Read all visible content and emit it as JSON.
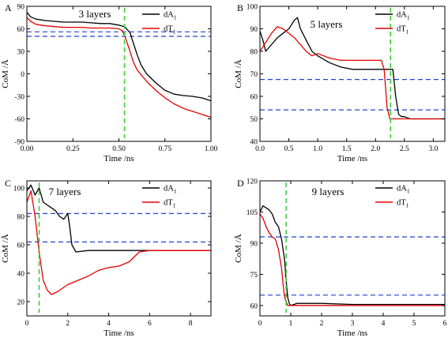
{
  "chart_data": [
    {
      "panel": "A",
      "title": "3 layers",
      "type": "line",
      "xlabel": "Time /ns",
      "ylabel": "CoM /Å",
      "xlim": [
        0,
        1
      ],
      "ylim": [
        -90,
        90
      ],
      "xticks": [
        "0.00",
        "0.25",
        "0.50",
        "0.75",
        "1.00"
      ],
      "xtickvals": [
        0,
        0.25,
        0.5,
        0.75,
        1.0
      ],
      "yticks": [
        "90",
        "60",
        "30",
        "0",
        "-30",
        "-60",
        "-90"
      ],
      "ytickvals": [
        90,
        60,
        30,
        0,
        -30,
        -60,
        -90
      ],
      "legend_position": "top-right",
      "series": [
        {
          "name": "dA",
          "sub": "1",
          "color": "#000000",
          "x": [
            0,
            0.02,
            0.05,
            0.1,
            0.15,
            0.2,
            0.25,
            0.3,
            0.35,
            0.4,
            0.45,
            0.5,
            0.53,
            0.56,
            0.58,
            0.6,
            0.62,
            0.65,
            0.7,
            0.75,
            0.8,
            0.85,
            0.9,
            0.95,
            1.0
          ],
          "y": [
            82,
            76,
            73,
            71,
            70,
            69,
            69,
            69,
            68,
            67,
            67,
            65,
            63,
            55,
            40,
            25,
            12,
            0,
            -12,
            -22,
            -27,
            -29,
            -30,
            -32,
            -36
          ]
        },
        {
          "name": "dT",
          "sub": "1",
          "color": "#e60000",
          "x": [
            0,
            0.02,
            0.05,
            0.1,
            0.15,
            0.2,
            0.25,
            0.3,
            0.35,
            0.4,
            0.45,
            0.5,
            0.52,
            0.54,
            0.56,
            0.58,
            0.6,
            0.65,
            0.7,
            0.75,
            0.8,
            0.85,
            0.9,
            0.95,
            1.0
          ],
          "y": [
            75,
            70,
            66,
            64,
            63,
            62,
            62,
            62,
            61,
            61,
            61,
            60,
            57,
            45,
            30,
            15,
            5,
            -10,
            -22,
            -32,
            -40,
            -46,
            -50,
            -54,
            -58
          ]
        }
      ],
      "reference_lines_y": [
        56,
        50
      ],
      "vline_x": 0.53
    },
    {
      "panel": "B",
      "title": "5 layers",
      "type": "line",
      "xlabel": "Time /ns",
      "ylabel": "CoM /Å",
      "xlim": [
        0,
        3.2
      ],
      "ylim": [
        40,
        100
      ],
      "xticks": [
        "0.0",
        "0.5",
        "1.0",
        "1.5",
        "2.0",
        "2.5",
        "3.0"
      ],
      "xtickvals": [
        0,
        0.5,
        1.0,
        1.5,
        2.0,
        2.5,
        3.0
      ],
      "yticks": [
        "40",
        "50",
        "60",
        "70",
        "80",
        "90",
        "100"
      ],
      "ytickvals": [
        40,
        50,
        60,
        70,
        80,
        90,
        100
      ],
      "legend_position": "top-right",
      "series": [
        {
          "name": "dA",
          "sub": "1",
          "color": "#000000",
          "x": [
            0,
            0.05,
            0.1,
            0.2,
            0.3,
            0.4,
            0.5,
            0.55,
            0.6,
            0.65,
            0.7,
            0.8,
            0.9,
            1.0,
            1.2,
            1.4,
            1.6,
            1.8,
            2.0,
            2.2,
            2.3,
            2.35,
            2.4,
            2.45,
            2.5,
            2.6,
            2.8,
            3.0,
            3.2
          ],
          "y": [
            89,
            85,
            80,
            83,
            86,
            88,
            90,
            92,
            94,
            95,
            90,
            85,
            80,
            78,
            75,
            73,
            72,
            72,
            72,
            72,
            72,
            60,
            52,
            51,
            51,
            50,
            50,
            50,
            50
          ]
        },
        {
          "name": "dT",
          "sub": "1",
          "color": "#e60000",
          "x": [
            0,
            0.05,
            0.1,
            0.2,
            0.3,
            0.4,
            0.5,
            0.6,
            0.7,
            0.8,
            0.9,
            1.0,
            1.2,
            1.4,
            1.6,
            1.8,
            2.0,
            2.1,
            2.15,
            2.2,
            2.25,
            2.3,
            2.4,
            2.6,
            2.8,
            3.0,
            3.2
          ],
          "y": [
            80,
            82,
            84,
            88,
            91,
            90,
            88,
            86,
            83,
            80,
            78,
            79,
            77,
            76,
            76,
            76,
            76,
            76,
            72,
            55,
            50,
            50,
            50,
            50,
            50,
            50,
            50
          ]
        }
      ],
      "reference_lines_y": [
        67.5,
        54
      ],
      "vline_x": 2.26
    },
    {
      "panel": "C",
      "title": "7 layers",
      "type": "line",
      "xlabel": "Time /ns",
      "ylabel": "CoM /Å",
      "xlim": [
        0,
        9
      ],
      "ylim": [
        10,
        105
      ],
      "xticks": [
        "0",
        "2",
        "4",
        "6",
        "8"
      ],
      "xtickvals": [
        0,
        2,
        4,
        6,
        8
      ],
      "yticks": [
        "20",
        "40",
        "60",
        "80",
        "100"
      ],
      "ytickvals": [
        20,
        40,
        60,
        80,
        100
      ],
      "legend_position": "top-right",
      "series": [
        {
          "name": "dA",
          "sub": "1",
          "color": "#000000",
          "x": [
            0,
            0.2,
            0.4,
            0.6,
            0.8,
            1.0,
            1.2,
            1.4,
            1.6,
            1.8,
            2.0,
            2.1,
            2.2,
            2.4,
            3,
            4,
            5,
            6,
            7,
            8,
            9
          ],
          "y": [
            98,
            102,
            95,
            100,
            90,
            88,
            86,
            84,
            80,
            78,
            82,
            72,
            60,
            55,
            56,
            56,
            56,
            56,
            56,
            56,
            56
          ]
        },
        {
          "name": "dT",
          "sub": "1",
          "color": "#e60000",
          "x": [
            0,
            0.2,
            0.4,
            0.6,
            0.8,
            1.0,
            1.2,
            1.5,
            2.0,
            2.5,
            3.0,
            3.5,
            4.0,
            4.5,
            5.0,
            5.5,
            6,
            7,
            8,
            9
          ],
          "y": [
            90,
            98,
            80,
            55,
            35,
            28,
            25,
            27,
            32,
            35,
            38,
            42,
            44,
            45,
            48,
            55,
            56,
            56,
            56,
            56
          ]
        }
      ],
      "reference_lines_y": [
        82,
        62
      ],
      "vline_x": 0.6
    },
    {
      "panel": "D",
      "title": "9 layers",
      "type": "line",
      "xlabel": "Time /ns",
      "ylabel": "CoM /Å",
      "xlim": [
        0,
        6
      ],
      "ylim": [
        55,
        120
      ],
      "xticks": [
        "0",
        "1",
        "2",
        "3",
        "4",
        "5",
        "6"
      ],
      "xtickvals": [
        0,
        1,
        2,
        3,
        4,
        5,
        6
      ],
      "yticks": [
        "60",
        "75",
        "90",
        "105",
        "120"
      ],
      "ytickvals": [
        60,
        75,
        90,
        105,
        120
      ],
      "legend_position": "top-right",
      "series": [
        {
          "name": "dA",
          "sub": "1",
          "color": "#000000",
          "x": [
            0,
            0.1,
            0.2,
            0.3,
            0.4,
            0.5,
            0.6,
            0.7,
            0.8,
            0.85,
            0.9,
            0.95,
            1.0,
            1.2,
            2,
            3,
            4,
            5,
            6
          ],
          "y": [
            105,
            108,
            107,
            106,
            104,
            100,
            98,
            92,
            82,
            72,
            64,
            61,
            60,
            61,
            61,
            60.5,
            60.5,
            60.5,
            60.5
          ]
        },
        {
          "name": "dT",
          "sub": "1",
          "color": "#e60000",
          "x": [
            0,
            0.1,
            0.2,
            0.3,
            0.4,
            0.5,
            0.6,
            0.7,
            0.75,
            0.8,
            0.85,
            0.9,
            1.0,
            1.5,
            2,
            3,
            4,
            5,
            6
          ],
          "y": [
            104,
            102,
            98,
            95,
            93,
            92,
            87,
            78,
            70,
            64,
            62,
            60,
            60,
            60,
            60,
            60,
            60,
            60,
            60
          ]
        }
      ],
      "reference_lines_y": [
        93,
        65
      ],
      "vline_x": 0.85
    }
  ],
  "colors": {
    "dA": "#000000",
    "dT": "#e60000",
    "reference": "#2244cc",
    "marker": "#33cc33"
  }
}
